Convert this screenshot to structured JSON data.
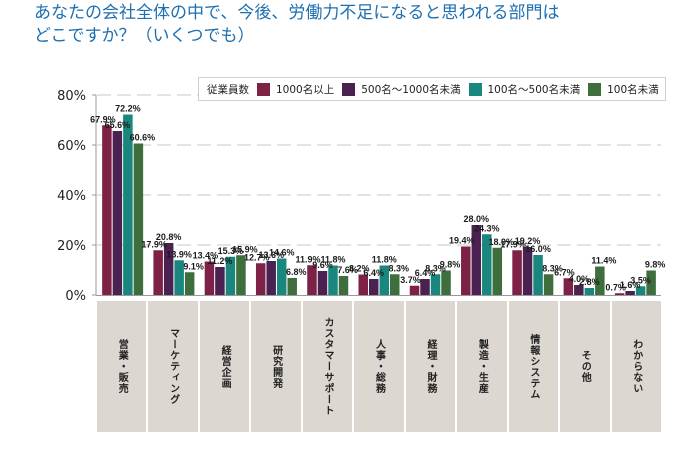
{
  "title": {
    "line1": "あなたの会社全体の中で、今後、労働力不足になると思われる部門は",
    "line2": "どこですか？（いくつでも）"
  },
  "legend": {
    "title": "従業員数",
    "items": [
      {
        "label": "1000名以上",
        "color": "#7d2146"
      },
      {
        "label": "500名～1000名未満",
        "color": "#4a2150"
      },
      {
        "label": "100名～500名未満",
        "color": "#1a877e"
      },
      {
        "label": "100名未満",
        "color": "#3f6e3d"
      }
    ]
  },
  "chart_data": {
    "type": "bar",
    "title": "あなたの会社全体の中で、今後、労働力不足になると思われる部門はどこですか？（いくつでも）",
    "xlabel": "",
    "ylabel": "",
    "ylim": [
      0,
      80
    ],
    "yticks": [
      "0%",
      "20%",
      "40%",
      "60%",
      "80%"
    ],
    "ytick_values": [
      0,
      20,
      40,
      60,
      80
    ],
    "grid": true,
    "legend_position": "top-right",
    "categories": [
      "営業・販売",
      "マーケティング",
      "経営企画",
      "研究開発",
      "カスタマーサポート",
      "人事・総務",
      "経理・財務",
      "製造・生産",
      "情報システム",
      "その他",
      "わからない"
    ],
    "series": [
      {
        "name": "1000名以上",
        "color": "#7d2146",
        "values": [
          67.9,
          17.9,
          13.4,
          12.7,
          11.9,
          8.2,
          3.7,
          19.4,
          17.9,
          6.7,
          0.7
        ]
      },
      {
        "name": "500名～1000名未満",
        "color": "#4a2150",
        "values": [
          65.6,
          20.8,
          11.2,
          13.6,
          9.6,
          6.4,
          6.4,
          28.0,
          19.2,
          4.0,
          1.6
        ]
      },
      {
        "name": "100名～500名未満",
        "color": "#1a877e",
        "values": [
          72.2,
          13.9,
          15.3,
          14.6,
          11.8,
          11.8,
          8.3,
          24.3,
          16.0,
          2.8,
          3.5
        ]
      },
      {
        "name": "100名未満",
        "color": "#3f6e3d",
        "values": [
          60.6,
          9.1,
          15.9,
          6.8,
          7.6,
          8.3,
          9.8,
          18.9,
          8.3,
          11.4,
          9.8
        ]
      }
    ]
  }
}
